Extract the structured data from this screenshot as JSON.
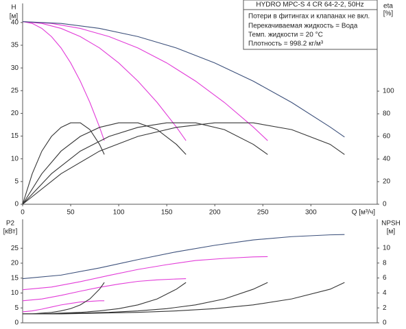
{
  "chart_data": [
    {
      "type": "line",
      "title": "HYDRO MPC-S 4 CR 64-2-2, 50Hz",
      "annotations": [
        "Потери в фитингах и клапанах не вкл.",
        "Перекачиваемая жидкость = Вода",
        "Темп. жидкости = 20 °C",
        "Плотность = 998.2 кг/м³"
      ],
      "y_label": "H",
      "y_unit": "[м]",
      "y2_label": "eta",
      "y2_unit": "[%]",
      "x_label": "Q [м³/ч]",
      "xlim": [
        0,
        369
      ],
      "xticks": [
        0,
        50,
        100,
        150,
        200,
        250,
        300
      ],
      "ylim": [
        0,
        44.2
      ],
      "yticks": [
        0,
        5,
        10,
        15,
        20,
        25,
        30,
        35,
        40
      ],
      "y2lim": [
        0,
        177.6
      ],
      "y2ticks": [
        0,
        20,
        40,
        60,
        80,
        100
      ],
      "series": [
        {
          "color": "#e23ad8",
          "x": [
            0,
            10,
            20,
            30,
            40,
            50,
            60,
            70,
            80,
            85
          ],
          "values": [
            40.2,
            39.8,
            38.7,
            36.9,
            34.4,
            31.1,
            27.1,
            22.4,
            17.0,
            14.0
          ]
        },
        {
          "color": "#e23ad8",
          "x": [
            0,
            20,
            40,
            60,
            80,
            100,
            120,
            140,
            160,
            170
          ],
          "values": [
            40.2,
            39.8,
            38.7,
            36.9,
            34.4,
            31.1,
            27.1,
            22.4,
            17.0,
            14.0
          ]
        },
        {
          "color": "#e23ad8",
          "x": [
            0,
            30,
            60,
            90,
            120,
            150,
            180,
            210,
            240,
            255
          ],
          "values": [
            40.2,
            39.8,
            38.7,
            36.9,
            34.4,
            31.1,
            27.1,
            22.4,
            17.0,
            14.0
          ]
        },
        {
          "color": "#3b4f7a",
          "x": [
            0,
            40,
            80,
            120,
            160,
            200,
            240,
            280,
            320,
            335
          ],
          "values": [
            40.2,
            39.8,
            38.7,
            36.9,
            34.4,
            31.1,
            27.1,
            22.4,
            17.0,
            14.8
          ]
        },
        {
          "color": "#333333",
          "axis": "y2",
          "x": [
            0,
            10,
            20,
            30,
            40,
            50,
            60,
            70,
            80,
            85
          ],
          "values": [
            0,
            27,
            47,
            60,
            68,
            72,
            72,
            66,
            53,
            44
          ]
        },
        {
          "color": "#333333",
          "axis": "y2",
          "x": [
            0,
            20,
            40,
            60,
            80,
            100,
            120,
            140,
            160,
            170
          ],
          "values": [
            0,
            27,
            47,
            60,
            68,
            72,
            72,
            66,
            53,
            44
          ]
        },
        {
          "color": "#333333",
          "axis": "y2",
          "x": [
            0,
            30,
            60,
            90,
            120,
            150,
            180,
            210,
            240,
            255
          ],
          "values": [
            0,
            27,
            47,
            60,
            68,
            72,
            72,
            66,
            53,
            44
          ]
        },
        {
          "color": "#333333",
          "axis": "y2",
          "x": [
            0,
            40,
            80,
            120,
            160,
            200,
            240,
            280,
            320,
            335
          ],
          "values": [
            0,
            27,
            47,
            60,
            68,
            72,
            72,
            66,
            53,
            44
          ]
        }
      ]
    },
    {
      "type": "line",
      "y_label": "P2",
      "y_unit": "[кВт]",
      "y2_label": "NPSH",
      "y2_unit": "[м]",
      "xlim": [
        0,
        369
      ],
      "ylim": [
        0,
        34.7
      ],
      "yticks": [
        0,
        5,
        10,
        15,
        20,
        25
      ],
      "y2lim": [
        0,
        13.85
      ],
      "y2ticks": [
        0,
        2,
        4,
        6,
        8,
        10
      ],
      "series": [
        {
          "color": "#e23ad8",
          "x": [
            0,
            10,
            20,
            30,
            40,
            50,
            60,
            70,
            80,
            85
          ],
          "values": [
            3.7,
            4.0,
            4.6,
            5.3,
            6.0,
            6.5,
            7.0,
            7.2,
            7.4,
            7.4
          ]
        },
        {
          "color": "#e23ad8",
          "x": [
            0,
            20,
            40,
            60,
            80,
            100,
            120,
            140,
            160,
            170
          ],
          "values": [
            7.4,
            8.0,
            9.2,
            10.6,
            11.9,
            13.0,
            13.9,
            14.4,
            14.7,
            14.8
          ]
        },
        {
          "color": "#e23ad8",
          "x": [
            0,
            30,
            60,
            90,
            120,
            150,
            180,
            210,
            240,
            255
          ],
          "values": [
            11.1,
            12.0,
            13.8,
            15.9,
            17.9,
            19.5,
            20.9,
            21.6,
            22.1,
            22.2
          ]
        },
        {
          "color": "#3b4f7a",
          "x": [
            0,
            40,
            80,
            120,
            160,
            200,
            240,
            280,
            320,
            335
          ],
          "values": [
            14.8,
            16.0,
            18.4,
            21.2,
            23.8,
            26.0,
            27.8,
            28.9,
            29.5,
            29.6
          ]
        },
        {
          "color": "#333333",
          "axis": "y2",
          "x": [
            0,
            10,
            20,
            30,
            40,
            50,
            60,
            70,
            80,
            85
          ],
          "values": [
            1.2,
            1.2,
            1.3,
            1.4,
            1.6,
            1.9,
            2.4,
            3.2,
            4.5,
            5.4
          ]
        },
        {
          "color": "#333333",
          "axis": "y2",
          "x": [
            0,
            20,
            40,
            60,
            80,
            100,
            120,
            140,
            160,
            170
          ],
          "values": [
            1.2,
            1.2,
            1.3,
            1.4,
            1.6,
            1.9,
            2.4,
            3.2,
            4.5,
            5.4
          ]
        },
        {
          "color": "#333333",
          "axis": "y2",
          "x": [
            0,
            30,
            60,
            90,
            120,
            150,
            180,
            210,
            240,
            255
          ],
          "values": [
            1.2,
            1.2,
            1.3,
            1.4,
            1.6,
            1.9,
            2.4,
            3.2,
            4.5,
            5.4
          ]
        },
        {
          "color": "#333333",
          "axis": "y2",
          "x": [
            0,
            40,
            80,
            120,
            160,
            200,
            240,
            280,
            320,
            335
          ],
          "values": [
            1.2,
            1.2,
            1.3,
            1.4,
            1.6,
            1.9,
            2.4,
            3.2,
            4.5,
            5.4
          ]
        }
      ]
    }
  ]
}
